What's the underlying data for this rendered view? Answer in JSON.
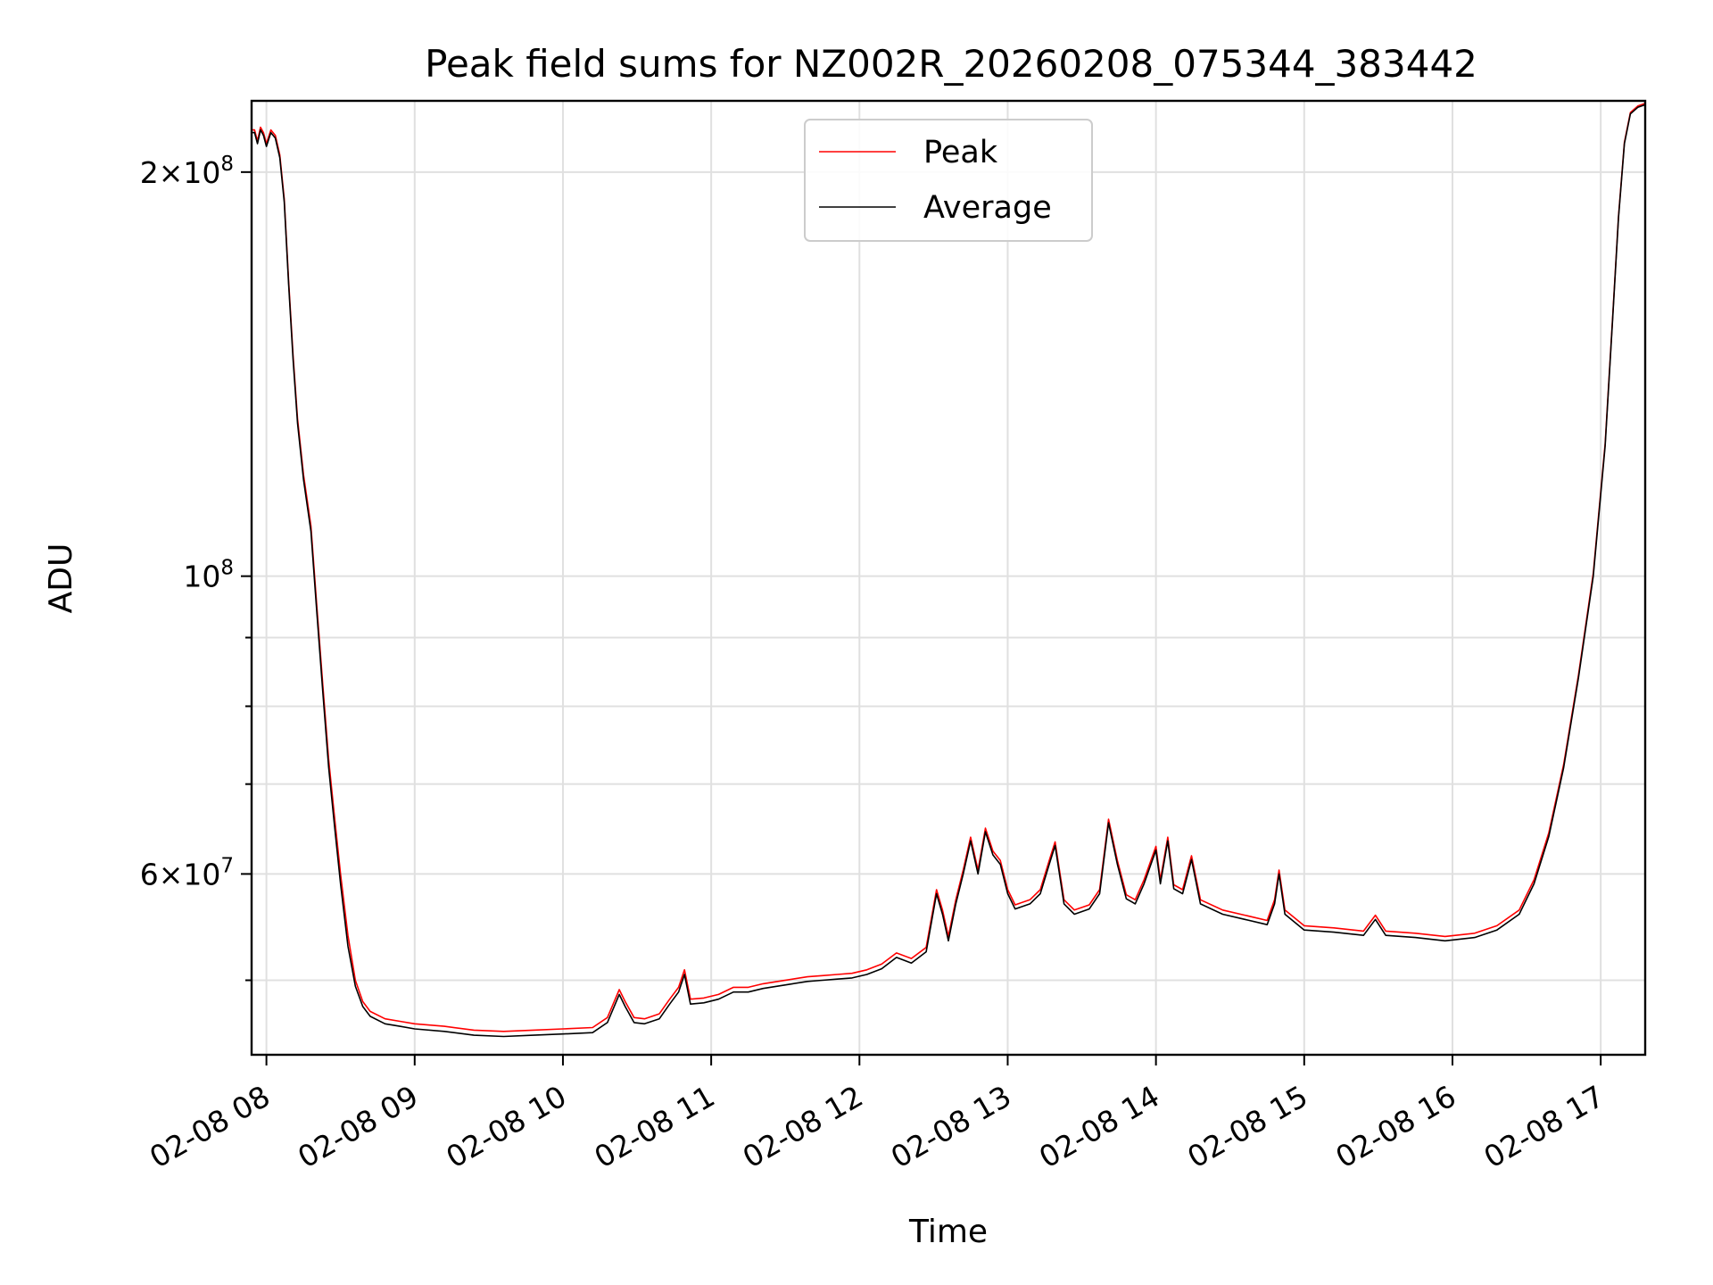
{
  "chart_data": {
    "type": "line",
    "title": "Peak field sums for NZ002R_20260208_075344_383442",
    "xlabel": "Time",
    "ylabel": "ADU",
    "yscale": "log",
    "ylim": [
      44000000,
      226000000
    ],
    "xlim": [
      7.9,
      17.3
    ],
    "grid": true,
    "legend_position": "top-center",
    "x_ticks": [
      {
        "value": 8,
        "label": "02-08 08"
      },
      {
        "value": 9,
        "label": "02-08 09"
      },
      {
        "value": 10,
        "label": "02-08 10"
      },
      {
        "value": 11,
        "label": "02-08 11"
      },
      {
        "value": 12,
        "label": "02-08 12"
      },
      {
        "value": 13,
        "label": "02-08 13"
      },
      {
        "value": 14,
        "label": "02-08 14"
      },
      {
        "value": 15,
        "label": "02-08 15"
      },
      {
        "value": 16,
        "label": "02-08 16"
      },
      {
        "value": 17,
        "label": "02-08 17"
      }
    ],
    "y_major_ticks": [
      {
        "value": 200000000,
        "mantissa": "2×10",
        "exp": "8"
      },
      {
        "value": 100000000,
        "mantissa": "10",
        "exp": "8"
      },
      {
        "value": 60000000,
        "mantissa": "6×10",
        "exp": "7"
      }
    ],
    "y_minor_ticks": [
      50000000,
      70000000,
      80000000,
      90000000
    ],
    "series": [
      {
        "name": "Average",
        "color": "#000000",
        "points": [
          [
            7.9,
            214000000
          ],
          [
            7.92,
            214000000
          ],
          [
            7.94,
            210000000
          ],
          [
            7.96,
            215000000
          ],
          [
            7.98,
            213000000
          ],
          [
            8.0,
            209000000
          ],
          [
            8.03,
            214000000
          ],
          [
            8.06,
            212000000
          ],
          [
            8.09,
            205000000
          ],
          [
            8.12,
            190000000
          ],
          [
            8.15,
            165000000
          ],
          [
            8.18,
            145000000
          ],
          [
            8.21,
            130000000
          ],
          [
            8.25,
            118000000
          ],
          [
            8.3,
            108000000
          ],
          [
            8.34,
            94000000
          ],
          [
            8.38,
            82000000
          ],
          [
            8.42,
            72000000
          ],
          [
            8.46,
            65000000
          ],
          [
            8.5,
            59000000
          ],
          [
            8.55,
            53000000
          ],
          [
            8.6,
            49500000
          ],
          [
            8.65,
            47800000
          ],
          [
            8.7,
            47000000
          ],
          [
            8.8,
            46400000
          ],
          [
            8.9,
            46200000
          ],
          [
            9.0,
            46000000
          ],
          [
            9.2,
            45800000
          ],
          [
            9.4,
            45500000
          ],
          [
            9.6,
            45400000
          ],
          [
            9.8,
            45500000
          ],
          [
            10.0,
            45600000
          ],
          [
            10.2,
            45700000
          ],
          [
            10.3,
            46500000
          ],
          [
            10.38,
            48800000
          ],
          [
            10.42,
            47800000
          ],
          [
            10.48,
            46500000
          ],
          [
            10.55,
            46400000
          ],
          [
            10.65,
            46800000
          ],
          [
            10.72,
            48000000
          ],
          [
            10.78,
            49000000
          ],
          [
            10.82,
            50500000
          ],
          [
            10.86,
            48000000
          ],
          [
            10.95,
            48100000
          ],
          [
            11.05,
            48400000
          ],
          [
            11.15,
            49000000
          ],
          [
            11.25,
            49000000
          ],
          [
            11.35,
            49300000
          ],
          [
            11.45,
            49500000
          ],
          [
            11.55,
            49700000
          ],
          [
            11.65,
            49900000
          ],
          [
            11.75,
            50000000
          ],
          [
            11.85,
            50100000
          ],
          [
            11.95,
            50200000
          ],
          [
            12.05,
            50500000
          ],
          [
            12.15,
            51000000
          ],
          [
            12.25,
            52000000
          ],
          [
            12.35,
            51500000
          ],
          [
            12.45,
            52500000
          ],
          [
            12.52,
            58000000
          ],
          [
            12.56,
            56000000
          ],
          [
            12.6,
            53500000
          ],
          [
            12.65,
            57000000
          ],
          [
            12.7,
            60000000
          ],
          [
            12.75,
            63500000
          ],
          [
            12.8,
            60000000
          ],
          [
            12.85,
            64500000
          ],
          [
            12.9,
            62000000
          ],
          [
            12.95,
            61000000
          ],
          [
            13.0,
            58000000
          ],
          [
            13.05,
            56500000
          ],
          [
            13.15,
            57000000
          ],
          [
            13.22,
            58000000
          ],
          [
            13.28,
            61000000
          ],
          [
            13.32,
            63000000
          ],
          [
            13.38,
            57000000
          ],
          [
            13.45,
            56000000
          ],
          [
            13.55,
            56500000
          ],
          [
            13.62,
            58000000
          ],
          [
            13.68,
            65500000
          ],
          [
            13.74,
            61000000
          ],
          [
            13.8,
            57500000
          ],
          [
            13.86,
            57000000
          ],
          [
            13.92,
            59000000
          ],
          [
            14.0,
            62500000
          ],
          [
            14.03,
            59000000
          ],
          [
            14.08,
            63500000
          ],
          [
            14.12,
            58500000
          ],
          [
            14.18,
            58000000
          ],
          [
            14.24,
            61500000
          ],
          [
            14.3,
            57000000
          ],
          [
            14.45,
            56000000
          ],
          [
            14.6,
            55500000
          ],
          [
            14.75,
            55000000
          ],
          [
            14.8,
            57000000
          ],
          [
            14.83,
            60000000
          ],
          [
            14.87,
            56000000
          ],
          [
            15.0,
            54500000
          ],
          [
            15.2,
            54300000
          ],
          [
            15.4,
            54000000
          ],
          [
            15.48,
            55500000
          ],
          [
            15.55,
            54000000
          ],
          [
            15.75,
            53800000
          ],
          [
            15.95,
            53500000
          ],
          [
            16.15,
            53800000
          ],
          [
            16.3,
            54500000
          ],
          [
            16.45,
            56000000
          ],
          [
            16.55,
            59000000
          ],
          [
            16.65,
            64000000
          ],
          [
            16.75,
            72000000
          ],
          [
            16.85,
            84000000
          ],
          [
            16.95,
            100000000
          ],
          [
            17.03,
            125000000
          ],
          [
            17.08,
            155000000
          ],
          [
            17.12,
            185000000
          ],
          [
            17.16,
            210000000
          ],
          [
            17.2,
            221000000
          ],
          [
            17.25,
            223500000
          ],
          [
            17.3,
            224500000
          ]
        ]
      },
      {
        "name": "Peak",
        "color": "#ff0000",
        "points": [
          [
            7.9,
            215000000
          ],
          [
            7.92,
            215000000
          ],
          [
            7.94,
            211000000
          ],
          [
            7.96,
            216000000
          ],
          [
            7.98,
            214000000
          ],
          [
            8.0,
            210000000
          ],
          [
            8.03,
            215000000
          ],
          [
            8.06,
            213000000
          ],
          [
            8.09,
            206000000
          ],
          [
            8.12,
            191000000
          ],
          [
            8.15,
            166000000
          ],
          [
            8.18,
            146000000
          ],
          [
            8.21,
            131000000
          ],
          [
            8.25,
            119000000
          ],
          [
            8.3,
            109000000
          ],
          [
            8.34,
            95000000
          ],
          [
            8.38,
            83000000
          ],
          [
            8.42,
            73000000
          ],
          [
            8.46,
            66000000
          ],
          [
            8.5,
            60000000
          ],
          [
            8.55,
            54000000
          ],
          [
            8.6,
            50000000
          ],
          [
            8.65,
            48200000
          ],
          [
            8.7,
            47400000
          ],
          [
            8.8,
            46800000
          ],
          [
            8.9,
            46600000
          ],
          [
            9.0,
            46400000
          ],
          [
            9.2,
            46200000
          ],
          [
            9.4,
            45900000
          ],
          [
            9.6,
            45800000
          ],
          [
            9.8,
            45900000
          ],
          [
            10.0,
            46000000
          ],
          [
            10.2,
            46100000
          ],
          [
            10.3,
            46900000
          ],
          [
            10.38,
            49200000
          ],
          [
            10.42,
            48200000
          ],
          [
            10.48,
            46900000
          ],
          [
            10.55,
            46800000
          ],
          [
            10.65,
            47200000
          ],
          [
            10.72,
            48400000
          ],
          [
            10.78,
            49400000
          ],
          [
            10.82,
            50900000
          ],
          [
            10.86,
            48400000
          ],
          [
            10.95,
            48500000
          ],
          [
            11.05,
            48800000
          ],
          [
            11.15,
            49400000
          ],
          [
            11.25,
            49400000
          ],
          [
            11.35,
            49700000
          ],
          [
            11.45,
            49900000
          ],
          [
            11.55,
            50100000
          ],
          [
            11.65,
            50300000
          ],
          [
            11.75,
            50400000
          ],
          [
            11.85,
            50500000
          ],
          [
            11.95,
            50600000
          ],
          [
            12.05,
            50900000
          ],
          [
            12.15,
            51400000
          ],
          [
            12.25,
            52400000
          ],
          [
            12.35,
            51900000
          ],
          [
            12.45,
            52900000
          ],
          [
            12.52,
            58400000
          ],
          [
            12.56,
            56400000
          ],
          [
            12.6,
            53900000
          ],
          [
            12.65,
            57400000
          ],
          [
            12.7,
            60400000
          ],
          [
            12.75,
            63900000
          ],
          [
            12.8,
            60400000
          ],
          [
            12.85,
            64900000
          ],
          [
            12.9,
            62400000
          ],
          [
            12.95,
            61400000
          ],
          [
            13.0,
            58400000
          ],
          [
            13.05,
            56900000
          ],
          [
            13.15,
            57400000
          ],
          [
            13.22,
            58400000
          ],
          [
            13.28,
            61400000
          ],
          [
            13.32,
            63400000
          ],
          [
            13.38,
            57400000
          ],
          [
            13.45,
            56400000
          ],
          [
            13.55,
            56900000
          ],
          [
            13.62,
            58400000
          ],
          [
            13.68,
            65900000
          ],
          [
            13.74,
            61400000
          ],
          [
            13.8,
            57900000
          ],
          [
            13.86,
            57400000
          ],
          [
            13.92,
            59400000
          ],
          [
            14.0,
            62900000
          ],
          [
            14.03,
            59400000
          ],
          [
            14.08,
            63900000
          ],
          [
            14.12,
            58900000
          ],
          [
            14.18,
            58400000
          ],
          [
            14.24,
            61900000
          ],
          [
            14.3,
            57400000
          ],
          [
            14.45,
            56400000
          ],
          [
            14.6,
            55900000
          ],
          [
            14.75,
            55400000
          ],
          [
            14.8,
            57400000
          ],
          [
            14.83,
            60400000
          ],
          [
            14.87,
            56400000
          ],
          [
            15.0,
            54900000
          ],
          [
            15.2,
            54700000
          ],
          [
            15.4,
            54400000
          ],
          [
            15.48,
            55900000
          ],
          [
            15.55,
            54400000
          ],
          [
            15.75,
            54200000
          ],
          [
            15.95,
            53900000
          ],
          [
            16.15,
            54200000
          ],
          [
            16.3,
            54900000
          ],
          [
            16.45,
            56400000
          ],
          [
            16.55,
            59400000
          ],
          [
            16.65,
            64400000
          ],
          [
            16.75,
            72400000
          ],
          [
            16.85,
            84400000
          ],
          [
            16.95,
            100500000
          ],
          [
            17.03,
            125500000
          ],
          [
            17.08,
            155500000
          ],
          [
            17.12,
            185500000
          ],
          [
            17.16,
            210500000
          ],
          [
            17.2,
            221500000
          ],
          [
            17.25,
            224000000
          ],
          [
            17.3,
            225000000
          ]
        ]
      }
    ]
  }
}
